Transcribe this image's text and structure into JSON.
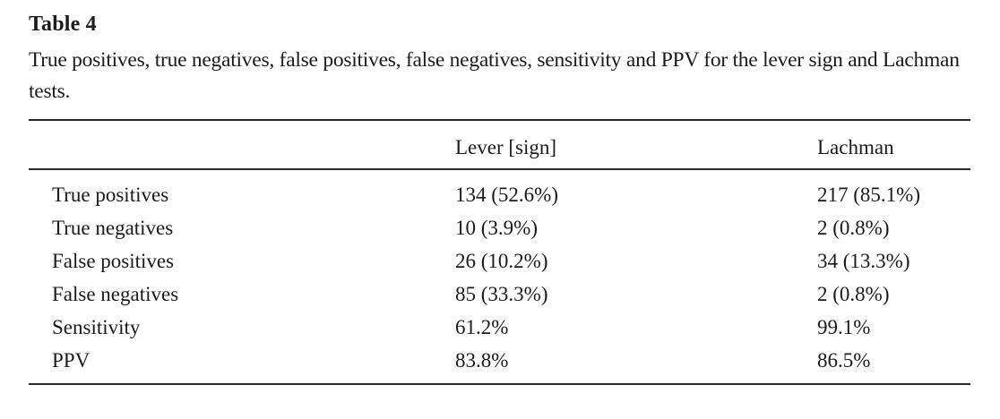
{
  "page": {
    "title": "Table 4",
    "caption": "True positives, true negatives, false positives, false negatives, sensitivity and PPV for the lever sign and Lachman tests."
  },
  "chart_data": {
    "type": "table",
    "columns": [
      "",
      "Lever [sign]",
      "Lachman"
    ],
    "rows": [
      [
        "True positives",
        "134 (52.6%)",
        "217 (85.1%)"
      ],
      [
        "True negatives",
        "10 (3.9%)",
        "2 (0.8%)"
      ],
      [
        "False positives",
        "26 (10.2%)",
        "34 (13.3%)"
      ],
      [
        "False negatives",
        "85 (33.3%)",
        "2 (0.8%)"
      ],
      [
        "Sensitivity",
        "61.2%",
        "99.1%"
      ],
      [
        "PPV",
        "83.8%",
        "86.5%"
      ]
    ]
  },
  "colors": {
    "background": "#ffffff",
    "text": "#1b1b1b",
    "rule": "#292929"
  }
}
